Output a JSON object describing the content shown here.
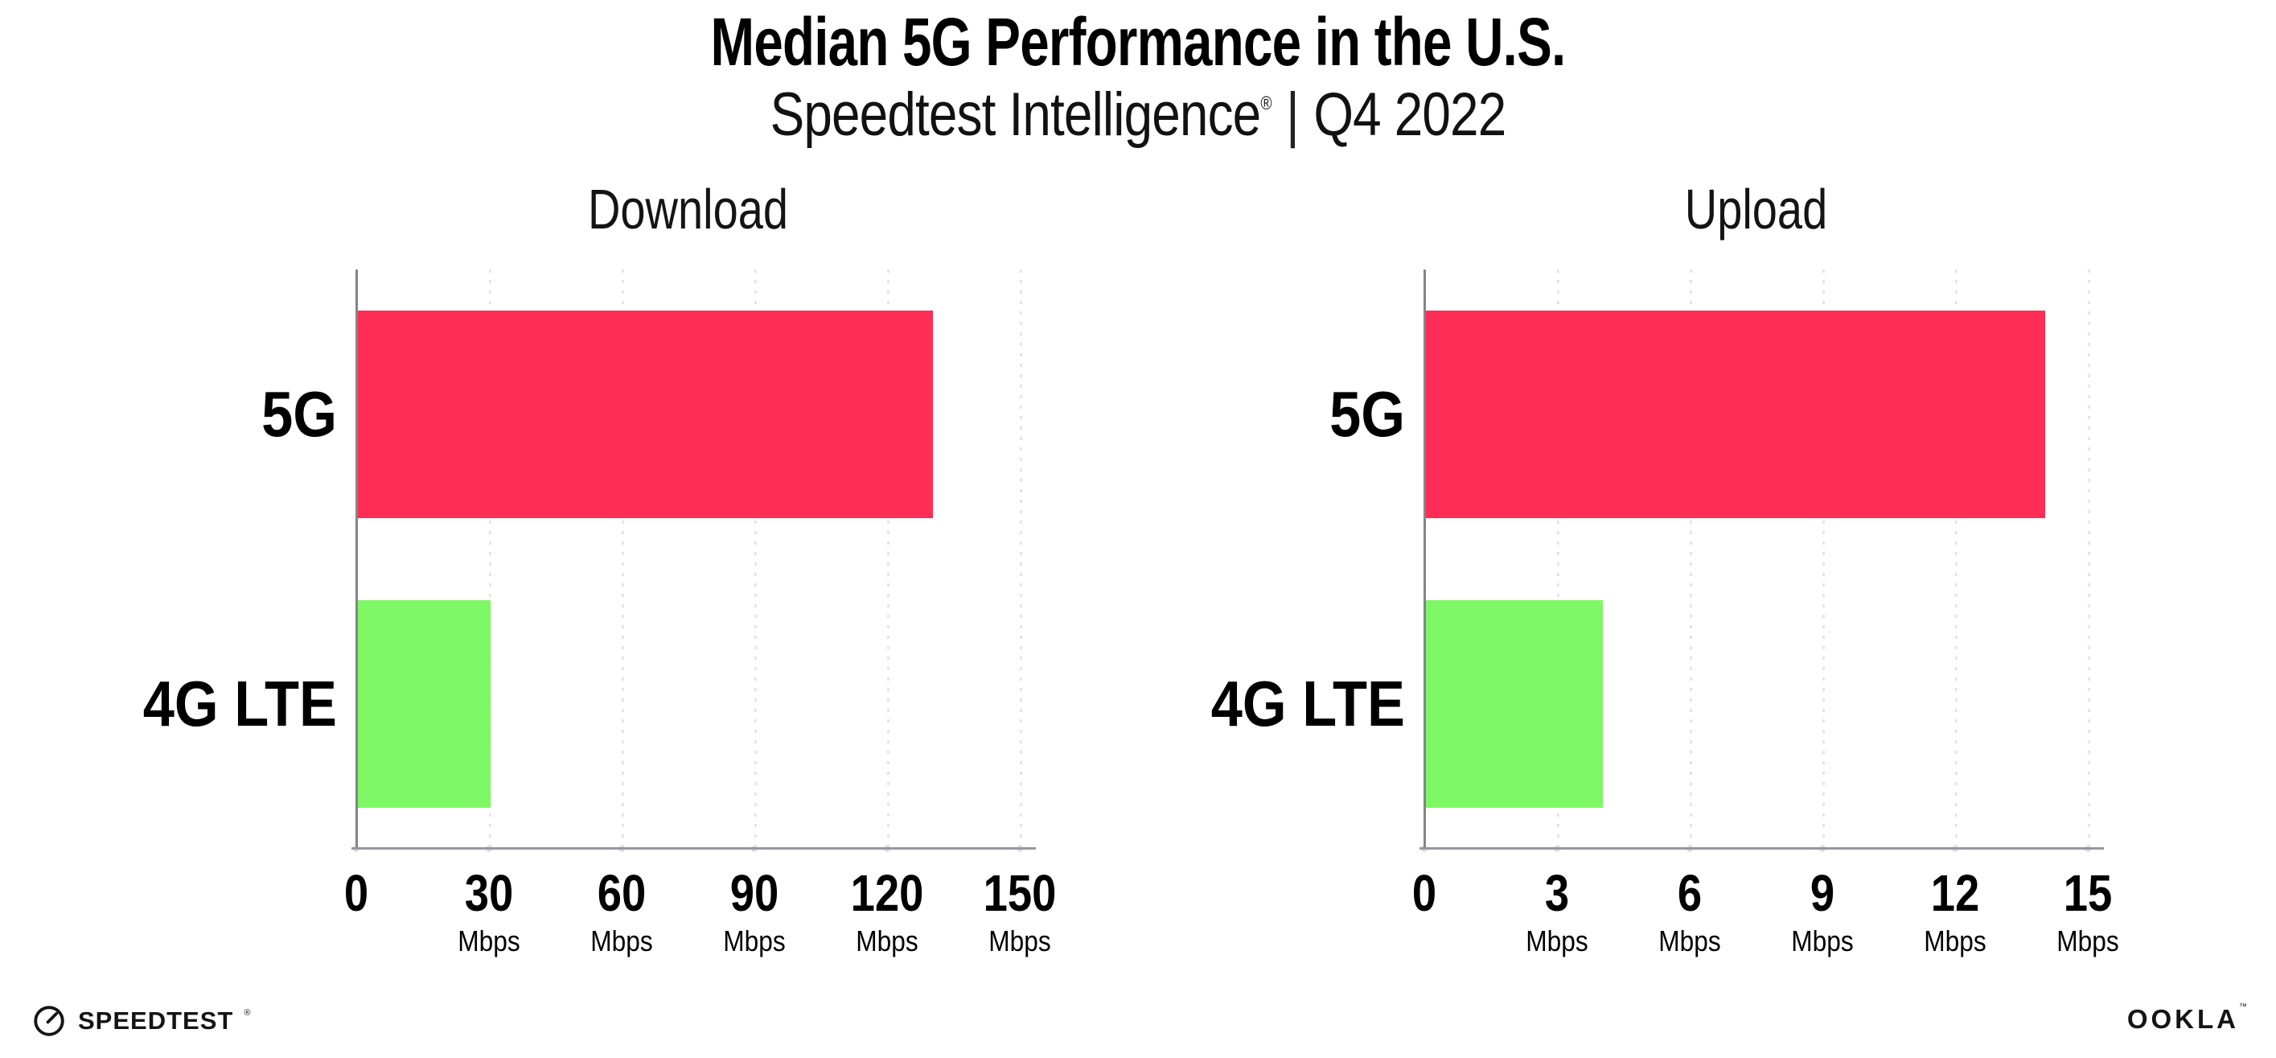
{
  "header": {
    "title": "Median 5G Performance in the U.S.",
    "subtitle_brand": "Speedtest Intelligence",
    "subtitle_reg": "®",
    "subtitle_separator": "|",
    "subtitle_period": "Q4 2022"
  },
  "footer": {
    "speedtest_logo_text": "SPEEDTEST",
    "speedtest_logo_mark": "®",
    "ookla_logo_text": "OOKLA",
    "ookla_logo_mark": "™"
  },
  "colors": {
    "bar_5g": "#FD2D55",
    "bar_4g_lte": "#7DF764",
    "gridline": "#E4E4EF",
    "x_axis_line": "#97979F",
    "y_axis_line": "#84848C",
    "text": "#000000"
  },
  "chart_data": [
    {
      "type": "bar",
      "orientation": "horizontal",
      "title": "Download",
      "categories": [
        "5G",
        "4G LTE"
      ],
      "values": [
        130,
        30
      ],
      "unit": "Mbps",
      "xlim": [
        0,
        150
      ],
      "ticks": [
        0,
        30,
        60,
        90,
        120,
        150
      ],
      "tick_unit_label": "Mbps",
      "bar_colors": [
        "#FD2D55",
        "#7DF764"
      ],
      "grid": true,
      "legend": false
    },
    {
      "type": "bar",
      "orientation": "horizontal",
      "title": "Upload",
      "categories": [
        "5G",
        "4G LTE"
      ],
      "values": [
        14,
        4
      ],
      "unit": "Mbps",
      "xlim": [
        0,
        15
      ],
      "ticks": [
        0,
        3,
        6,
        9,
        12,
        15
      ],
      "tick_unit_label": "Mbps",
      "bar_colors": [
        "#FD2D55",
        "#7DF764"
      ],
      "grid": true,
      "legend": false
    }
  ]
}
